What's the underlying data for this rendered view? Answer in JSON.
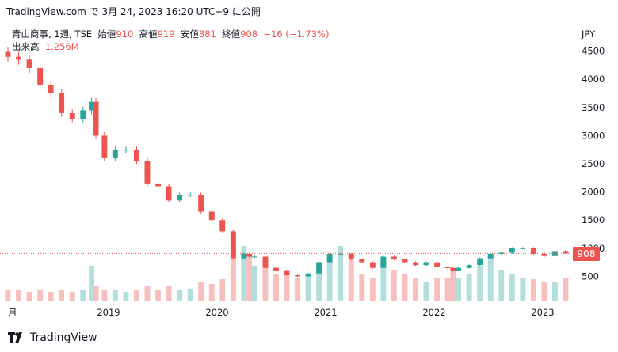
{
  "caption": "TradingView.com で 3月 24, 2023 16:20 UTC+9 に公開",
  "legend": {
    "symbol": "青山商事, 1週, TSE",
    "open_label": "始値",
    "open_value": "910",
    "high_label": "高値",
    "high_value": "919",
    "low_label": "安値",
    "low_value": "881",
    "close_label": "終値",
    "close_value": "908",
    "change": "−16 (−1.73%)",
    "volume_label": "出来高",
    "volume_value": "1.256M"
  },
  "currency": "JPY",
  "last_price_tag": "908",
  "footer": {
    "brand": "TradingView"
  },
  "colors": {
    "up": "#26a69a",
    "down": "#ef5350",
    "vol_up": "#b2dfdb",
    "vol_down": "#f7c0be",
    "last_line": "#ef5350"
  },
  "chart_data": {
    "type": "candlestick",
    "interval": "1 week",
    "x_tick_labels": [
      "月",
      "2019",
      "2020",
      "2021",
      "2022",
      "2023"
    ],
    "y_tick_labels": [
      "4500",
      "4000",
      "3500",
      "3000",
      "2500",
      "2000",
      "1500",
      "1000",
      "500"
    ],
    "ylim": [
      0,
      4700
    ],
    "last_close": 908,
    "series": [
      {
        "name": "price",
        "x": [
          2018.0,
          2018.1,
          2018.2,
          2018.3,
          2018.4,
          2018.5,
          2018.6,
          2018.7,
          2018.78,
          2018.82,
          2018.9,
          2019.0,
          2019.1,
          2019.2,
          2019.3,
          2019.4,
          2019.5,
          2019.6,
          2019.7,
          2019.8,
          2019.9,
          2020.0,
          2020.1,
          2020.2,
          2020.25,
          2020.3,
          2020.4,
          2020.5,
          2020.6,
          2020.7,
          2020.8,
          2020.9,
          2021.0,
          2021.1,
          2021.2,
          2021.3,
          2021.4,
          2021.5,
          2021.6,
          2021.7,
          2021.8,
          2021.9,
          2022.0,
          2022.1,
          2022.15,
          2022.2,
          2022.3,
          2022.4,
          2022.5,
          2022.6,
          2022.7,
          2022.8,
          2022.9,
          2023.0,
          2023.1,
          2023.2
        ],
        "y": [
          4400,
          4350,
          4200,
          3900,
          3750,
          3400,
          3300,
          3450,
          3600,
          3000,
          2600,
          2750,
          2750,
          2550,
          2150,
          2100,
          1850,
          1950,
          1950,
          1650,
          1500,
          1300,
          820,
          900,
          850,
          850,
          650,
          600,
          520,
          500,
          550,
          750,
          900,
          900,
          800,
          750,
          650,
          850,
          800,
          750,
          700,
          750,
          660,
          650,
          600,
          650,
          700,
          820,
          900,
          920,
          1000,
          1000,
          900,
          860,
          950,
          908
        ]
      },
      {
        "name": "volume",
        "x": [
          2018.0,
          2018.1,
          2018.2,
          2018.3,
          2018.4,
          2018.5,
          2018.6,
          2018.7,
          2018.78,
          2018.82,
          2018.9,
          2019.0,
          2019.1,
          2019.2,
          2019.3,
          2019.4,
          2019.5,
          2019.6,
          2019.7,
          2019.8,
          2019.9,
          2020.0,
          2020.1,
          2020.2,
          2020.25,
          2020.3,
          2020.4,
          2020.5,
          2020.6,
          2020.7,
          2020.8,
          2020.9,
          2021.0,
          2021.1,
          2021.2,
          2021.3,
          2021.4,
          2021.5,
          2021.6,
          2021.7,
          2021.8,
          2021.9,
          2022.0,
          2022.1,
          2022.15,
          2022.2,
          2022.3,
          2022.4,
          2022.5,
          2022.6,
          2022.7,
          2022.8,
          2022.9,
          2023.0,
          2023.1,
          2023.2
        ],
        "y": [
          0.15,
          0.15,
          0.12,
          0.14,
          0.12,
          0.15,
          0.12,
          0.14,
          0.45,
          0.2,
          0.15,
          0.15,
          0.12,
          0.14,
          0.2,
          0.15,
          0.2,
          0.15,
          0.16,
          0.25,
          0.22,
          0.28,
          0.55,
          0.7,
          0.6,
          0.45,
          0.45,
          0.35,
          0.4,
          0.3,
          0.35,
          0.5,
          0.55,
          0.7,
          0.6,
          0.35,
          0.3,
          0.5,
          0.4,
          0.35,
          0.3,
          0.25,
          0.3,
          0.3,
          0.4,
          0.3,
          0.35,
          0.45,
          0.55,
          0.4,
          0.35,
          0.3,
          0.28,
          0.25,
          0.25,
          0.3
        ]
      }
    ]
  }
}
